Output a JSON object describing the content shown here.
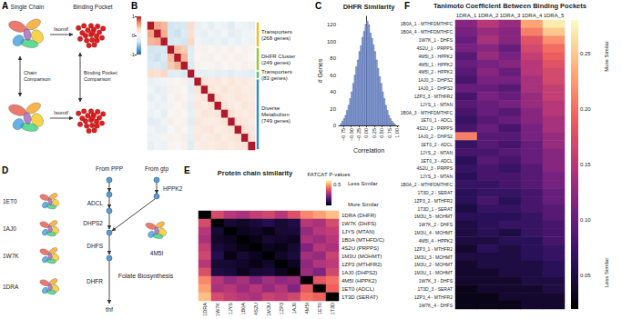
{
  "chart_data": [
    {
      "panel": "B",
      "type": "heatmap",
      "tick_labels": false,
      "values": [
        [
          1,
          0.55,
          0.48,
          -0.32,
          -0.28,
          -0.25,
          0.3,
          -0.12,
          -0.08,
          -0.15,
          -0.05,
          -0.1,
          -0.18,
          -0.06,
          -0.09,
          -0.13
        ],
        [
          0.55,
          1,
          0.52,
          -0.3,
          -0.35,
          -0.22,
          0.26,
          -0.1,
          -0.14,
          -0.07,
          -0.12,
          -0.04,
          -0.16,
          -0.11,
          -0.08,
          -0.05
        ],
        [
          0.48,
          0.52,
          1,
          -0.27,
          -0.24,
          -0.31,
          0.34,
          -0.06,
          -0.11,
          -0.13,
          -0.09,
          -0.15,
          -0.07,
          -0.12,
          -0.04,
          -0.1
        ],
        [
          -0.32,
          -0.3,
          -0.27,
          1,
          0.46,
          0.4,
          -0.21,
          0.05,
          0.08,
          0.02,
          0.06,
          0.03,
          0.09,
          0.01,
          0.07,
          0.04
        ],
        [
          -0.28,
          -0.35,
          -0.24,
          0.46,
          1,
          0.5,
          -0.18,
          0.03,
          0.06,
          0.09,
          0.02,
          0.07,
          0.04,
          0.08,
          0.05,
          0.01
        ],
        [
          -0.25,
          -0.22,
          -0.31,
          0.4,
          0.5,
          1,
          -0.24,
          0.07,
          0.02,
          0.05,
          0.08,
          0.01,
          0.06,
          0.03,
          0.09,
          0.06
        ],
        [
          0.3,
          0.26,
          0.34,
          -0.21,
          -0.18,
          -0.24,
          1,
          -0.14,
          -0.17,
          -0.12,
          -0.16,
          -0.13,
          -0.19,
          -0.11,
          -0.15,
          -0.18
        ],
        [
          -0.12,
          -0.1,
          -0.06,
          0.05,
          0.03,
          0.07,
          -0.14,
          1,
          0.22,
          0.15,
          0.18,
          0.12,
          0.2,
          0.14,
          0.17,
          0.11
        ],
        [
          -0.08,
          -0.14,
          -0.11,
          0.08,
          0.06,
          0.02,
          -0.17,
          0.22,
          1,
          0.19,
          0.13,
          0.21,
          0.16,
          0.18,
          0.12,
          0.15
        ],
        [
          -0.15,
          -0.07,
          -0.13,
          0.02,
          0.09,
          0.05,
          -0.12,
          0.15,
          0.19,
          1,
          0.24,
          0.17,
          0.13,
          0.2,
          0.16,
          0.14
        ],
        [
          -0.05,
          -0.12,
          -0.09,
          0.06,
          0.02,
          0.08,
          -0.16,
          0.18,
          0.13,
          0.24,
          1,
          0.21,
          0.15,
          0.12,
          0.19,
          0.17
        ],
        [
          -0.1,
          -0.04,
          -0.15,
          0.03,
          0.07,
          0.01,
          -0.13,
          0.12,
          0.21,
          0.17,
          0.21,
          1,
          0.23,
          0.16,
          0.14,
          0.2
        ],
        [
          -0.18,
          -0.16,
          -0.07,
          0.09,
          0.04,
          0.06,
          -0.19,
          0.2,
          0.16,
          0.13,
          0.15,
          0.23,
          1,
          0.22,
          0.18,
          0.13
        ],
        [
          -0.06,
          -0.11,
          -0.12,
          0.01,
          0.08,
          0.03,
          -0.11,
          0.14,
          0.18,
          0.2,
          0.12,
          0.16,
          0.22,
          1,
          0.25,
          0.19
        ],
        [
          -0.09,
          -0.08,
          -0.04,
          0.07,
          0.05,
          0.09,
          -0.15,
          0.17,
          0.12,
          0.16,
          0.19,
          0.14,
          0.18,
          0.25,
          1,
          0.21
        ],
        [
          -0.13,
          -0.05,
          -0.1,
          0.04,
          0.01,
          0.06,
          -0.18,
          0.11,
          0.15,
          0.14,
          0.17,
          0.2,
          0.13,
          0.19,
          0.21,
          1
        ]
      ],
      "colorbar": {
        "range": [
          -1,
          1
        ],
        "ticks": [
          -1,
          0,
          1
        ]
      },
      "annotations": [
        {
          "lines": [
            "Transporters",
            "(268 genes)"
          ],
          "genes": 268,
          "color": "#e6c229"
        },
        {
          "lines": [
            "DHFR Cluster",
            "(249 genes)"
          ],
          "genes": 249,
          "color": "#9bc53d"
        },
        {
          "lines": [
            "Transporters",
            "(83 genes)"
          ],
          "genes": 83,
          "color": "#5bbf70"
        },
        {
          "lines": [
            "Diverse",
            "Metabolism",
            "(749 genes)"
          ],
          "genes": 749,
          "color": "#3a8fb7"
        }
      ]
    },
    {
      "panel": "C",
      "type": "histogram",
      "title": "DHFR Similarity",
      "x_label": "Correlation",
      "y_label": "# Genes",
      "bins": [
        -0.85,
        -0.8,
        -0.75,
        -0.7,
        -0.65,
        -0.6,
        -0.55,
        -0.5,
        -0.45,
        -0.4,
        -0.35,
        -0.3,
        -0.25,
        -0.2,
        -0.15,
        -0.1,
        -0.05,
        0,
        0.05,
        0.1,
        0.15,
        0.2,
        0.25,
        0.3,
        0.35,
        0.4,
        0.45,
        0.5,
        0.55,
        0.6,
        0.65,
        0.7,
        0.75,
        0.8,
        0.85,
        0.9,
        0.95
      ],
      "counts": [
        2,
        5,
        8,
        12,
        18,
        24,
        32,
        40,
        50,
        60,
        70,
        78,
        88,
        95,
        105,
        112,
        118,
        124,
        120,
        110,
        104,
        96,
        88,
        78,
        68,
        58,
        50,
        40,
        32,
        24,
        18,
        12,
        8,
        5,
        3,
        1
      ],
      "color": "#8fa3d6",
      "xlim": [
        -0.9,
        1.05
      ],
      "xticks": [
        {
          "value": -0.75,
          "label": "−0.75"
        },
        {
          "value": -0.5,
          "label": "−0.50"
        },
        {
          "value": -0.25,
          "label": "−0.25"
        },
        {
          "value": 0,
          "label": "0.00"
        },
        0.25,
        {
          "value": 0.5,
          "label": "0.50"
        },
        0.75,
        {
          "value": 1,
          "label": "1.00"
        }
      ],
      "ylim": [
        0,
        130
      ],
      "yticks": [
        0,
        20,
        40,
        60,
        80,
        100,
        120
      ]
    },
    {
      "panel": "E",
      "type": "heatmap",
      "title": "Protein chain similarity",
      "x": [
        "1DRA",
        "1W7K",
        "1JYS",
        "1B0A",
        "4S2U",
        "1M3U",
        "1ZP3",
        "1AJ0",
        "4M5I",
        "1ET0",
        "1T3D"
      ],
      "y": [
        "1DRA (DHFR)",
        "1W7K (DHFS)",
        "1JYS (MTAN)",
        "1B0A (MTHFD/C)",
        "4S2U (PRPPS)",
        "1M3U (MOHMT)",
        "1ZP3 (MTHFR2)",
        "1AJ0 (DHPS2)",
        "4M5I (HPPK2)",
        "1ET0 (ADCL)",
        "1T3D (SERAT)"
      ],
      "values": [
        [
          0.0,
          0.35,
          0.3,
          0.28,
          0.32,
          0.34,
          0.3,
          0.36,
          0.45,
          0.48,
          0.52
        ],
        [
          0.35,
          0.0,
          0.05,
          0.04,
          0.06,
          0.08,
          0.05,
          0.07,
          0.3,
          0.28,
          0.35
        ],
        [
          0.3,
          0.05,
          0.0,
          0.03,
          0.04,
          0.02,
          0.05,
          0.06,
          0.25,
          0.3,
          0.32
        ],
        [
          0.28,
          0.04,
          0.03,
          0.0,
          0.02,
          0.05,
          0.04,
          0.03,
          0.28,
          0.26,
          0.3
        ],
        [
          0.32,
          0.06,
          0.04,
          0.02,
          0.0,
          0.03,
          0.02,
          0.05,
          0.22,
          0.3,
          0.28
        ],
        [
          0.34,
          0.08,
          0.02,
          0.05,
          0.03,
          0.0,
          0.04,
          0.06,
          0.27,
          0.25,
          0.33
        ],
        [
          0.3,
          0.05,
          0.05,
          0.04,
          0.02,
          0.04,
          0.0,
          0.03,
          0.24,
          0.29,
          0.31
        ],
        [
          0.36,
          0.07,
          0.06,
          0.03,
          0.05,
          0.06,
          0.03,
          0.0,
          0.26,
          0.22,
          0.34
        ],
        [
          0.45,
          0.3,
          0.25,
          0.28,
          0.22,
          0.27,
          0.24,
          0.26,
          0.0,
          0.38,
          0.42
        ],
        [
          0.48,
          0.28,
          0.3,
          0.26,
          0.3,
          0.25,
          0.29,
          0.22,
          0.38,
          0.0,
          0.4
        ],
        [
          0.52,
          0.35,
          0.32,
          0.3,
          0.28,
          0.33,
          0.31,
          0.34,
          0.42,
          0.4,
          0.0
        ]
      ],
      "colorbar": {
        "title": "FATCAT P-values",
        "range": [
          0,
          0.6
        ],
        "ticks": [
          0.5
        ],
        "high_label": "Less Similar",
        "low_label": "More Similar"
      }
    },
    {
      "panel": "F",
      "type": "heatmap",
      "title": "Tanimoto Coefficient Between Binding Pockets",
      "x": [
        "1DRA_1",
        "1DRA_2",
        "1DRA_3",
        "1DRA_4",
        "1DRA_5"
      ],
      "y": [
        "1B0A_1 - MTHFDMTHFC",
        "1B0A_4 - MTHFDMTHFC",
        "1W7K_1 - DHFS",
        "4S2U_1 - PRPPS",
        "4M5I_3 - HPPK2",
        "4M5I_1 - HPPK2",
        "4M5I_2 - HPPK2",
        "1AJ0_3 - DHPS2",
        "1AJ0_1 - DHPS2",
        "1ZP3_3 - MTHFR2",
        "1JYS_1 - MTAN",
        "1B0A_3 - MTHFDMTHFC",
        "1ET0_1 - ADCL",
        "4S2U_2 - PRPPS",
        "1AJ0_2 - DHPS2",
        "1ET0_2 - ADCL",
        "1JYS_2 - MTAN",
        "1ET0_3 - ADCL",
        "4S2U_3 - PRPPS",
        "1JYS_3 - MTAN",
        "1B0A_2 - MTHFDMTHFC",
        "1T3D_2 - SERAT",
        "1ZP3_2 - MTHFR2",
        "1T3D_1 - SERAT",
        "1M3U_5 - MOHMT",
        "1W7K_2 - DHFS",
        "1M3U_4 - MOHMT",
        "4M5I_4 - HPPK2",
        "1ZP3_1 - MTHFR2",
        "1M3U_3 - MOHMT",
        "1M3U_2 - MOHMT",
        "1M3U_1 - MOHMT",
        "1W7K_3 - DHFS",
        "1T3D_3 - SERAT",
        "1ZP3_4 - MTHFR2",
        "1W7K_4 - DHFS"
      ],
      "values": [
        [
          0.12,
          0.15,
          0.13,
          0.23,
          0.27
        ],
        [
          0.11,
          0.13,
          0.12,
          0.21,
          0.25
        ],
        [
          0.1,
          0.14,
          0.12,
          0.18,
          0.22
        ],
        [
          0.11,
          0.12,
          0.1,
          0.17,
          0.2
        ],
        [
          0.09,
          0.13,
          0.11,
          0.16,
          0.19
        ],
        [
          0.1,
          0.11,
          0.12,
          0.15,
          0.18
        ],
        [
          0.09,
          0.12,
          0.1,
          0.15,
          0.17
        ],
        [
          0.08,
          0.11,
          0.11,
          0.14,
          0.17
        ],
        [
          0.1,
          0.1,
          0.09,
          0.14,
          0.16
        ],
        [
          0.08,
          0.11,
          0.1,
          0.13,
          0.16
        ],
        [
          0.09,
          0.1,
          0.11,
          0.13,
          0.15
        ],
        [
          0.08,
          0.1,
          0.09,
          0.12,
          0.15
        ],
        [
          0.07,
          0.09,
          0.1,
          0.12,
          0.14
        ],
        [
          0.08,
          0.1,
          0.08,
          0.11,
          0.14
        ],
        [
          0.21,
          0.09,
          0.09,
          0.11,
          0.13
        ],
        [
          0.07,
          0.09,
          0.08,
          0.1,
          0.13
        ],
        [
          0.08,
          0.08,
          0.09,
          0.1,
          0.12
        ],
        [
          0.06,
          0.09,
          0.08,
          0.1,
          0.12
        ],
        [
          0.07,
          0.08,
          0.07,
          0.09,
          0.12
        ],
        [
          0.06,
          0.08,
          0.08,
          0.09,
          0.11
        ],
        [
          0.07,
          0.07,
          0.08,
          0.09,
          0.11
        ],
        [
          0.06,
          0.07,
          0.07,
          0.08,
          0.1
        ],
        [
          0.06,
          0.08,
          0.06,
          0.08,
          0.1
        ],
        [
          0.05,
          0.07,
          0.07,
          0.08,
          0.09
        ],
        [
          0.06,
          0.06,
          0.06,
          0.07,
          0.09
        ],
        [
          0.05,
          0.06,
          0.07,
          0.07,
          0.08
        ],
        [
          0.05,
          0.06,
          0.05,
          0.07,
          0.08
        ],
        [
          0.05,
          0.05,
          0.06,
          0.06,
          0.08
        ],
        [
          0.04,
          0.06,
          0.05,
          0.06,
          0.07
        ],
        [
          0.05,
          0.05,
          0.05,
          0.06,
          0.07
        ],
        [
          0.04,
          0.05,
          0.05,
          0.05,
          0.06
        ],
        [
          0.04,
          0.04,
          0.05,
          0.05,
          0.06
        ],
        [
          0.04,
          0.04,
          0.04,
          0.05,
          0.05
        ],
        [
          0.03,
          0.04,
          0.04,
          0.04,
          0.05
        ],
        [
          0.03,
          0.03,
          0.04,
          0.04,
          0.04
        ],
        [
          0.03,
          0.03,
          0.03,
          0.04,
          0.04
        ]
      ],
      "colorbar": {
        "range": [
          0.02,
          0.28
        ],
        "ticks": [
          0.05,
          {
            "value": 0.1,
            "label": "0.10"
          },
          0.15,
          {
            "value": 0.2,
            "label": "0.20"
          },
          0.25
        ],
        "high_label": "More Similar",
        "low_label": "Less Similar"
      }
    }
  ],
  "diagrams": {
    "A": {
      "panel": "A",
      "single_chain": "Single Chain",
      "binding_pocket": "Binding Pocket",
      "arrow_label": "Isomif",
      "chain_comparison": [
        "Chain",
        "Comparison"
      ],
      "pocket_comparison": [
        "Binding Pocket",
        "Comparison"
      ]
    },
    "D": {
      "panel": "D",
      "title": "Folate Biosynthesis",
      "sources": [
        "From PPP",
        "From gtp"
      ],
      "enzymes": [
        {
          "name": "ADCL",
          "pdb": "1ET0"
        },
        {
          "name": "DHPS2",
          "pdb": "1AJ0"
        },
        {
          "name": "DHFS",
          "pdb": "1W7K"
        },
        {
          "name": "DHFR",
          "pdb": "1DRA"
        },
        {
          "name": "HPPK2",
          "pdb": "4M5I"
        }
      ],
      "product": "thf"
    }
  }
}
